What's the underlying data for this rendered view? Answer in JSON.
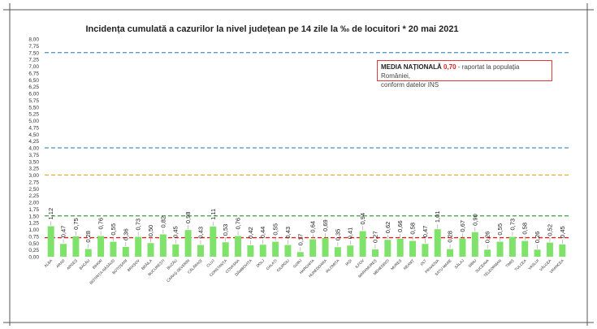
{
  "chart_data": {
    "type": "bar",
    "title": "Incidența cumulată a cazurilor la nivel județean pe 14 zile la ‰ de locuitori *  20 mai 2021",
    "categories": [
      "ALBA",
      "ARAD",
      "ARGEȘ",
      "BACĂU",
      "BIHOR",
      "BISTRIȚA-NĂSĂUD",
      "BOTOȘANI",
      "BRAȘOV",
      "BRĂILA",
      "BUCUREȘTI",
      "BUZĂU",
      "CARAȘ-SEVERIN",
      "CĂLĂRAȘI",
      "CLUJ",
      "CONSTANȚA",
      "COVASNA",
      "DÂMBOVIȚA",
      "DOLJ",
      "GALAȚI",
      "GIURGIU",
      "GORJ",
      "HARGHITA",
      "HUNEDOARA",
      "IALOMIȚA",
      "IAȘI",
      "ILFOV",
      "MARAMUREȘ",
      "MEHEDINȚI",
      "MUREȘ",
      "NEAMȚ",
      "OLT",
      "PRAHOVA",
      "SATU MARE",
      "SĂLAJ",
      "SIBIU",
      "SUCEAVA",
      "TELEORMAN",
      "TIMIȘ",
      "TULCEA",
      "VASLUI",
      "VÂLCEA",
      "VRANCEA"
    ],
    "values": [
      1.12,
      0.47,
      0.75,
      0.28,
      0.76,
      0.55,
      0.36,
      0.73,
      0.5,
      0.82,
      0.45,
      0.98,
      0.43,
      1.11,
      0.53,
      0.76,
      0.42,
      0.44,
      0.55,
      0.43,
      0.17,
      0.64,
      0.69,
      0.35,
      0.41,
      0.94,
      0.27,
      0.62,
      0.66,
      0.58,
      0.47,
      1.01,
      0.28,
      0.67,
      0.9,
      0.26,
      0.55,
      0.73,
      0.58,
      0.26,
      0.52,
      0.45
    ],
    "value_labels": [
      "1,12",
      "0,47",
      "0,75",
      "0,28",
      "0,76",
      "0,55",
      "0,36",
      "0,73",
      "0,50",
      "0,82",
      "0,45",
      "0,98",
      "0,43",
      "1,11",
      "0,53",
      "0,76",
      "0,42",
      "0,44",
      "0,55",
      "0,43",
      "0,17",
      "0,64",
      "0,69",
      "0,35",
      "0,41",
      "0,94",
      "0,27",
      "0,62",
      "0,66",
      "0,58",
      "0,47",
      "1,01",
      "0,28",
      "0,67",
      "0,90",
      "0,26",
      "0,55",
      "0,73",
      "0,58",
      "0,26",
      "0,52",
      "0,45"
    ],
    "ylim": [
      0,
      8
    ],
    "y_ticks": [
      "0,00",
      "0,25",
      "0,50",
      "0,75",
      "1,00",
      "1,25",
      "1,50",
      "1,75",
      "2,00",
      "2,25",
      "2,50",
      "2,75",
      "3,00",
      "3,25",
      "3,50",
      "3,75",
      "4,00",
      "4,25",
      "4,50",
      "4,75",
      "5,00",
      "5,25",
      "5,50",
      "5,75",
      "6,00",
      "6,25",
      "6,50",
      "6,75",
      "7,00",
      "7,25",
      "7,50",
      "7,75",
      "8,00"
    ],
    "threshold_lines": [
      {
        "value": 7.5,
        "color": "#4a8fc0"
      },
      {
        "value": 4.0,
        "color": "#4a8fc0"
      },
      {
        "value": 3.0,
        "color": "#e8b030"
      },
      {
        "value": 1.5,
        "color": "#3aa040"
      },
      {
        "value": 0.7,
        "color": "#e02020"
      }
    ],
    "bar_color": "#7fe36b",
    "grid": false,
    "legend": {
      "label_strong": "MEDIA NAȚIONALĂ",
      "label_value": "0,70",
      "label_rest": " - raportat la populația României,",
      "label_line2": "conform datelor INS"
    }
  }
}
